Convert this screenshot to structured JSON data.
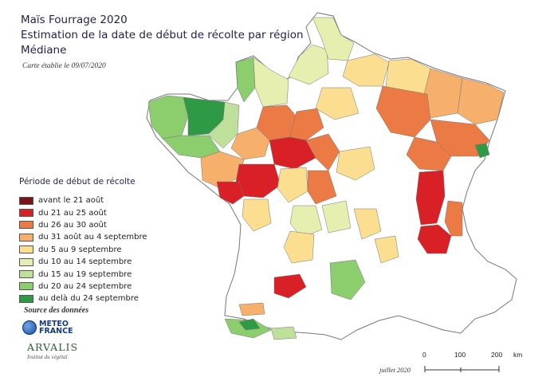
{
  "title": {
    "line1": "Maïs Fourrage 2020",
    "line2": "Estimation de la date de début de récolte par région",
    "line3": "Médiane"
  },
  "map_date_note": "Carte établie le 09/07/2020",
  "legend": {
    "title": "Période de début de récolte",
    "items": [
      {
        "label": "avant le 21 août",
        "color": "#7a1419"
      },
      {
        "label": "du 21 au 25 août",
        "color": "#d92027"
      },
      {
        "label": "du 26 au 30 août",
        "color": "#ec7a45"
      },
      {
        "label": "du 31 août au 4 septembre",
        "color": "#f7b06b"
      },
      {
        "label": "du 5 au 9 septembre",
        "color": "#fbde8f"
      },
      {
        "label": "du 10 au 14 septembre",
        "color": "#e6eeb0"
      },
      {
        "label": "du 15 au 19 septembre",
        "color": "#bfe09a"
      },
      {
        "label": "du 20 au 24 septembre",
        "color": "#8ccd6d"
      },
      {
        "label": "au delà du 24 septembre",
        "color": "#2f9a45"
      }
    ]
  },
  "source": {
    "label": "Source des données",
    "meteo_line1": "METEO",
    "meteo_line2": "FRANCE",
    "arvalis_name": "ARVALIS",
    "arvalis_tagline": "Institut du végétal"
  },
  "footer_date": "juillet 2020",
  "scale": {
    "ticks": [
      "0",
      "100",
      "200"
    ],
    "unit": "km"
  }
}
